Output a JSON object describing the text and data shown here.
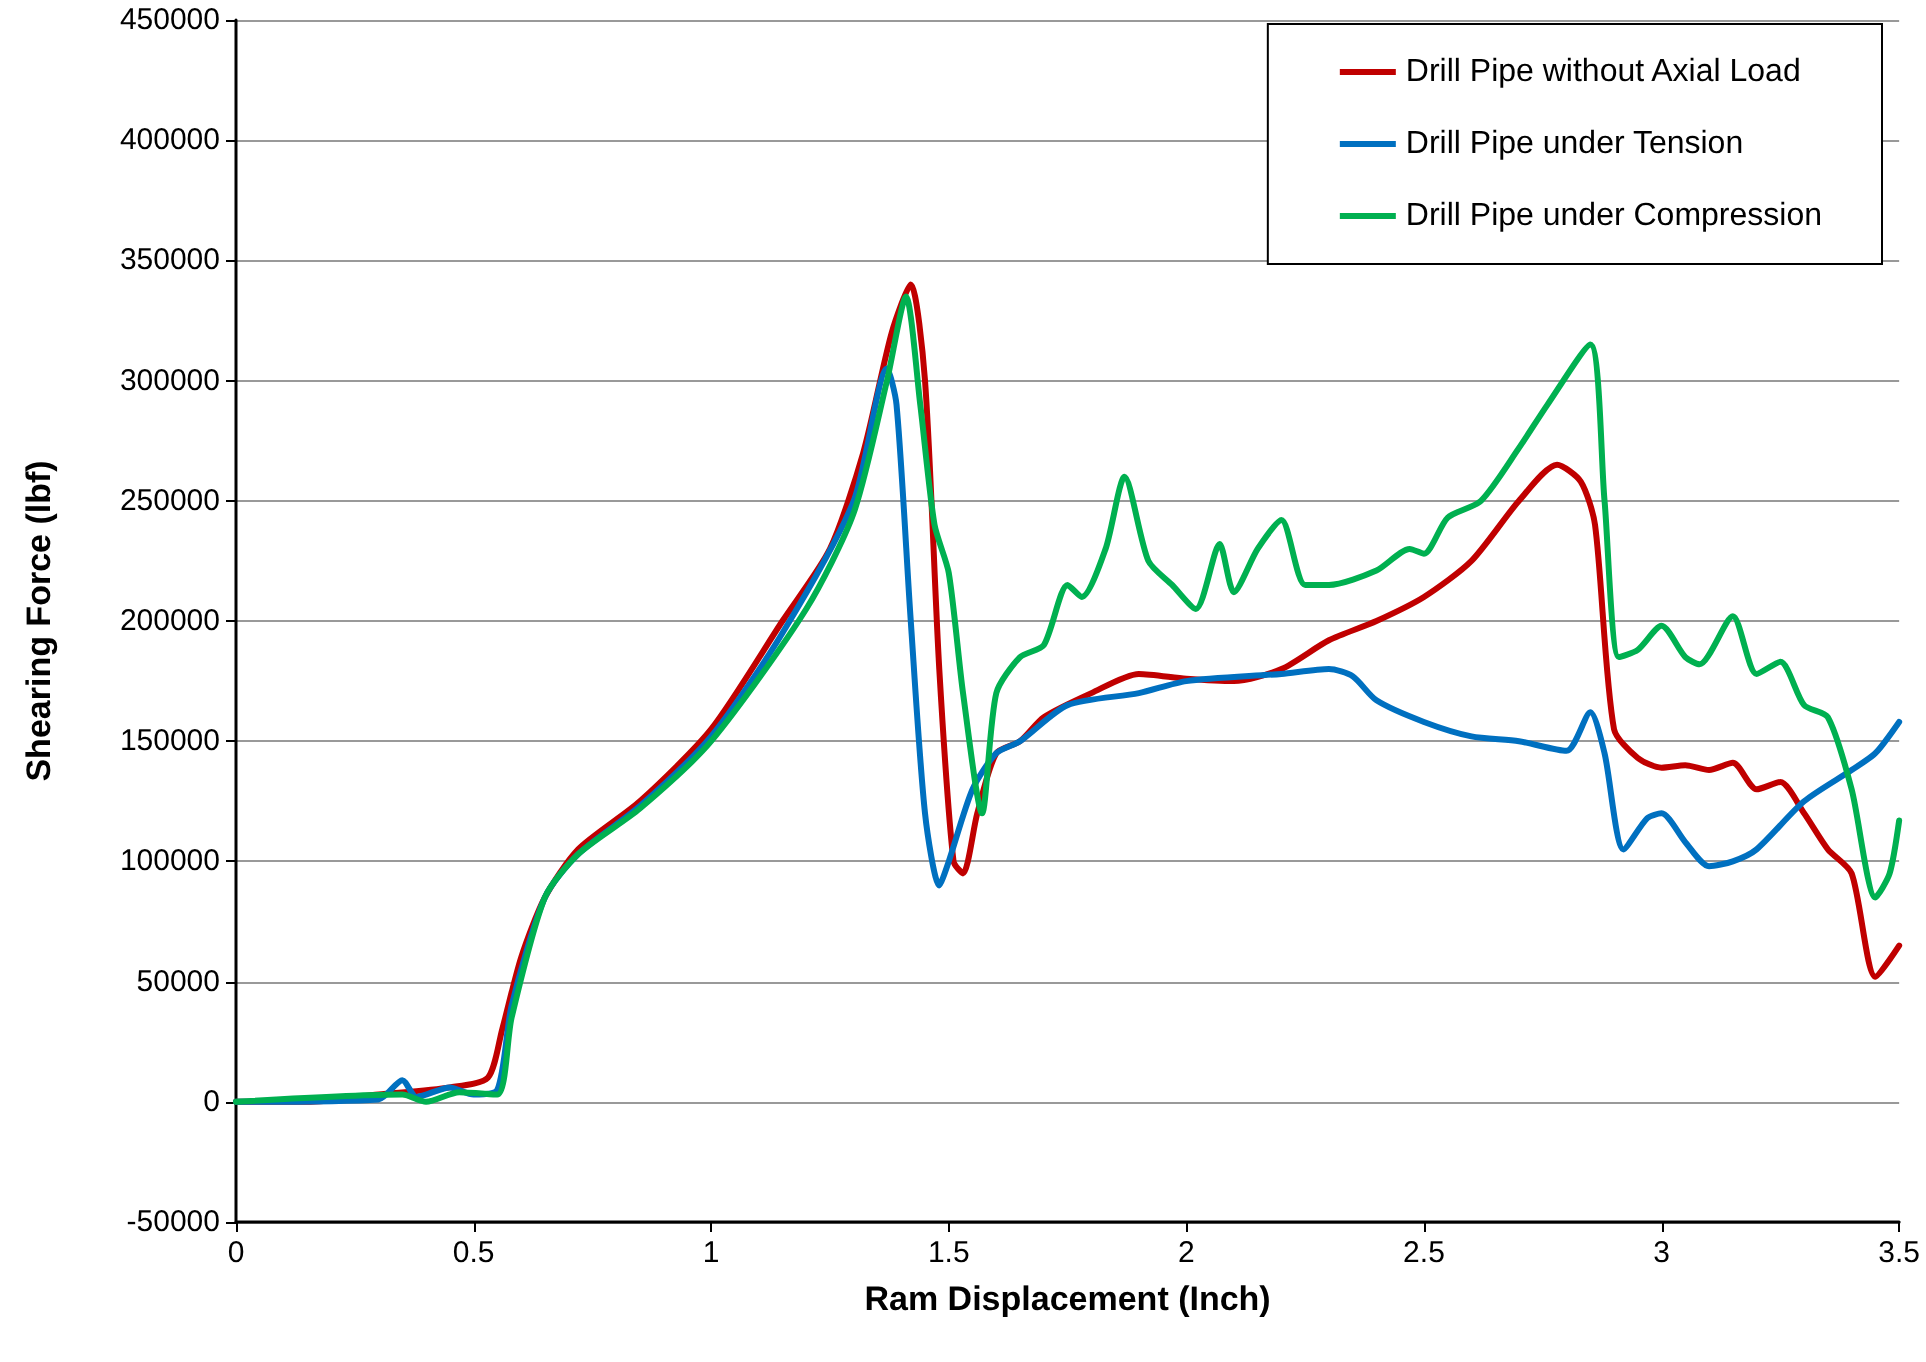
{
  "chart_data": {
    "type": "line",
    "xlabel": "Ram Displacement (Inch)",
    "ylabel": "Shearing Force (lbf)",
    "xlim": [
      0,
      3.5
    ],
    "xticks": [
      0,
      0.5,
      1,
      1.5,
      2,
      2.5,
      3,
      3.5
    ],
    "ylim": [
      -50000,
      450000
    ],
    "yticks": [
      -50000,
      0,
      50000,
      100000,
      150000,
      200000,
      250000,
      300000,
      350000,
      400000,
      450000
    ],
    "grid": "y",
    "legend": "top right",
    "marker": "none",
    "line_style": "solid",
    "series": [
      {
        "name": "Drill Pipe without Axial Load",
        "color": "#c00000",
        "x": [
          0,
          0.15,
          0.3,
          0.45,
          0.53,
          0.56,
          0.6,
          0.65,
          0.72,
          0.85,
          1.0,
          1.15,
          1.25,
          1.32,
          1.38,
          1.42,
          1.45,
          1.48,
          1.51,
          1.53,
          1.56,
          1.6,
          1.65,
          1.7,
          1.8,
          1.9,
          2.0,
          2.1,
          2.2,
          2.3,
          2.4,
          2.5,
          2.6,
          2.7,
          2.78,
          2.83,
          2.86,
          2.9,
          2.95,
          3.0,
          3.05,
          3.1,
          3.15,
          3.2,
          3.25,
          3.3,
          3.35,
          3.4,
          3.45,
          3.5
        ],
        "values": [
          0,
          0,
          3000,
          6000,
          10000,
          30000,
          60000,
          85000,
          105000,
          125000,
          155000,
          200000,
          230000,
          270000,
          320000,
          340000,
          300000,
          180000,
          100000,
          95000,
          120000,
          145000,
          150000,
          160000,
          170000,
          178000,
          176000,
          175000,
          180000,
          192000,
          200000,
          210000,
          225000,
          250000,
          265000,
          258000,
          240000,
          155000,
          143000,
          139000,
          140000,
          138000,
          141000,
          130000,
          133000,
          120000,
          105000,
          95000,
          52000,
          65000
        ]
      },
      {
        "name": "Drill Pipe under Tension",
        "color": "#0070c0",
        "x": [
          0,
          0.3,
          0.35,
          0.38,
          0.45,
          0.5,
          0.55,
          0.58,
          0.65,
          0.72,
          0.85,
          1.0,
          1.15,
          1.3,
          1.37,
          1.39,
          1.42,
          1.45,
          1.48,
          1.5,
          1.55,
          1.6,
          1.65,
          1.75,
          1.9,
          2.0,
          2.2,
          2.3,
          2.35,
          2.4,
          2.5,
          2.6,
          2.7,
          2.8,
          2.85,
          2.88,
          2.92,
          2.97,
          3.0,
          3.05,
          3.1,
          3.15,
          3.2,
          3.3,
          3.4,
          3.45,
          3.5
        ],
        "values": [
          0,
          1000,
          9000,
          2000,
          6000,
          3000,
          5000,
          40000,
          85000,
          103000,
          123000,
          152000,
          195000,
          250000,
          305000,
          290000,
          200000,
          120000,
          90000,
          100000,
          130000,
          145000,
          150000,
          165000,
          170000,
          175000,
          178000,
          180000,
          177000,
          167000,
          158000,
          152000,
          150000,
          146000,
          162000,
          145000,
          105000,
          118000,
          120000,
          108000,
          98000,
          100000,
          105000,
          125000,
          138000,
          145000,
          158000
        ]
      },
      {
        "name": "Drill Pipe under Compression",
        "color": "#00b050",
        "x": [
          0,
          0.35,
          0.4,
          0.47,
          0.55,
          0.58,
          0.65,
          0.72,
          0.85,
          1.0,
          1.2,
          1.3,
          1.37,
          1.41,
          1.44,
          1.47,
          1.5,
          1.53,
          1.57,
          1.6,
          1.65,
          1.7,
          1.75,
          1.78,
          1.83,
          1.87,
          1.92,
          1.97,
          2.02,
          2.07,
          2.1,
          2.15,
          2.2,
          2.25,
          2.3,
          2.4,
          2.47,
          2.5,
          2.55,
          2.62,
          2.7,
          2.76,
          2.85,
          2.88,
          2.91,
          2.95,
          3.0,
          3.05,
          3.08,
          3.15,
          3.2,
          3.25,
          3.3,
          3.35,
          3.4,
          3.45,
          3.48,
          3.5
        ],
        "values": [
          0,
          3000,
          0,
          4000,
          3000,
          35000,
          85000,
          103000,
          122000,
          150000,
          205000,
          245000,
          300000,
          335000,
          290000,
          240000,
          220000,
          170000,
          120000,
          170000,
          185000,
          190000,
          215000,
          210000,
          230000,
          260000,
          225000,
          215000,
          205000,
          232000,
          212000,
          230000,
          242000,
          215000,
          215000,
          221000,
          230000,
          228000,
          243000,
          250000,
          272000,
          290000,
          315000,
          250000,
          185000,
          188000,
          198000,
          185000,
          182000,
          202000,
          178000,
          183000,
          165000,
          160000,
          130000,
          85000,
          95000,
          117000
        ]
      }
    ]
  }
}
